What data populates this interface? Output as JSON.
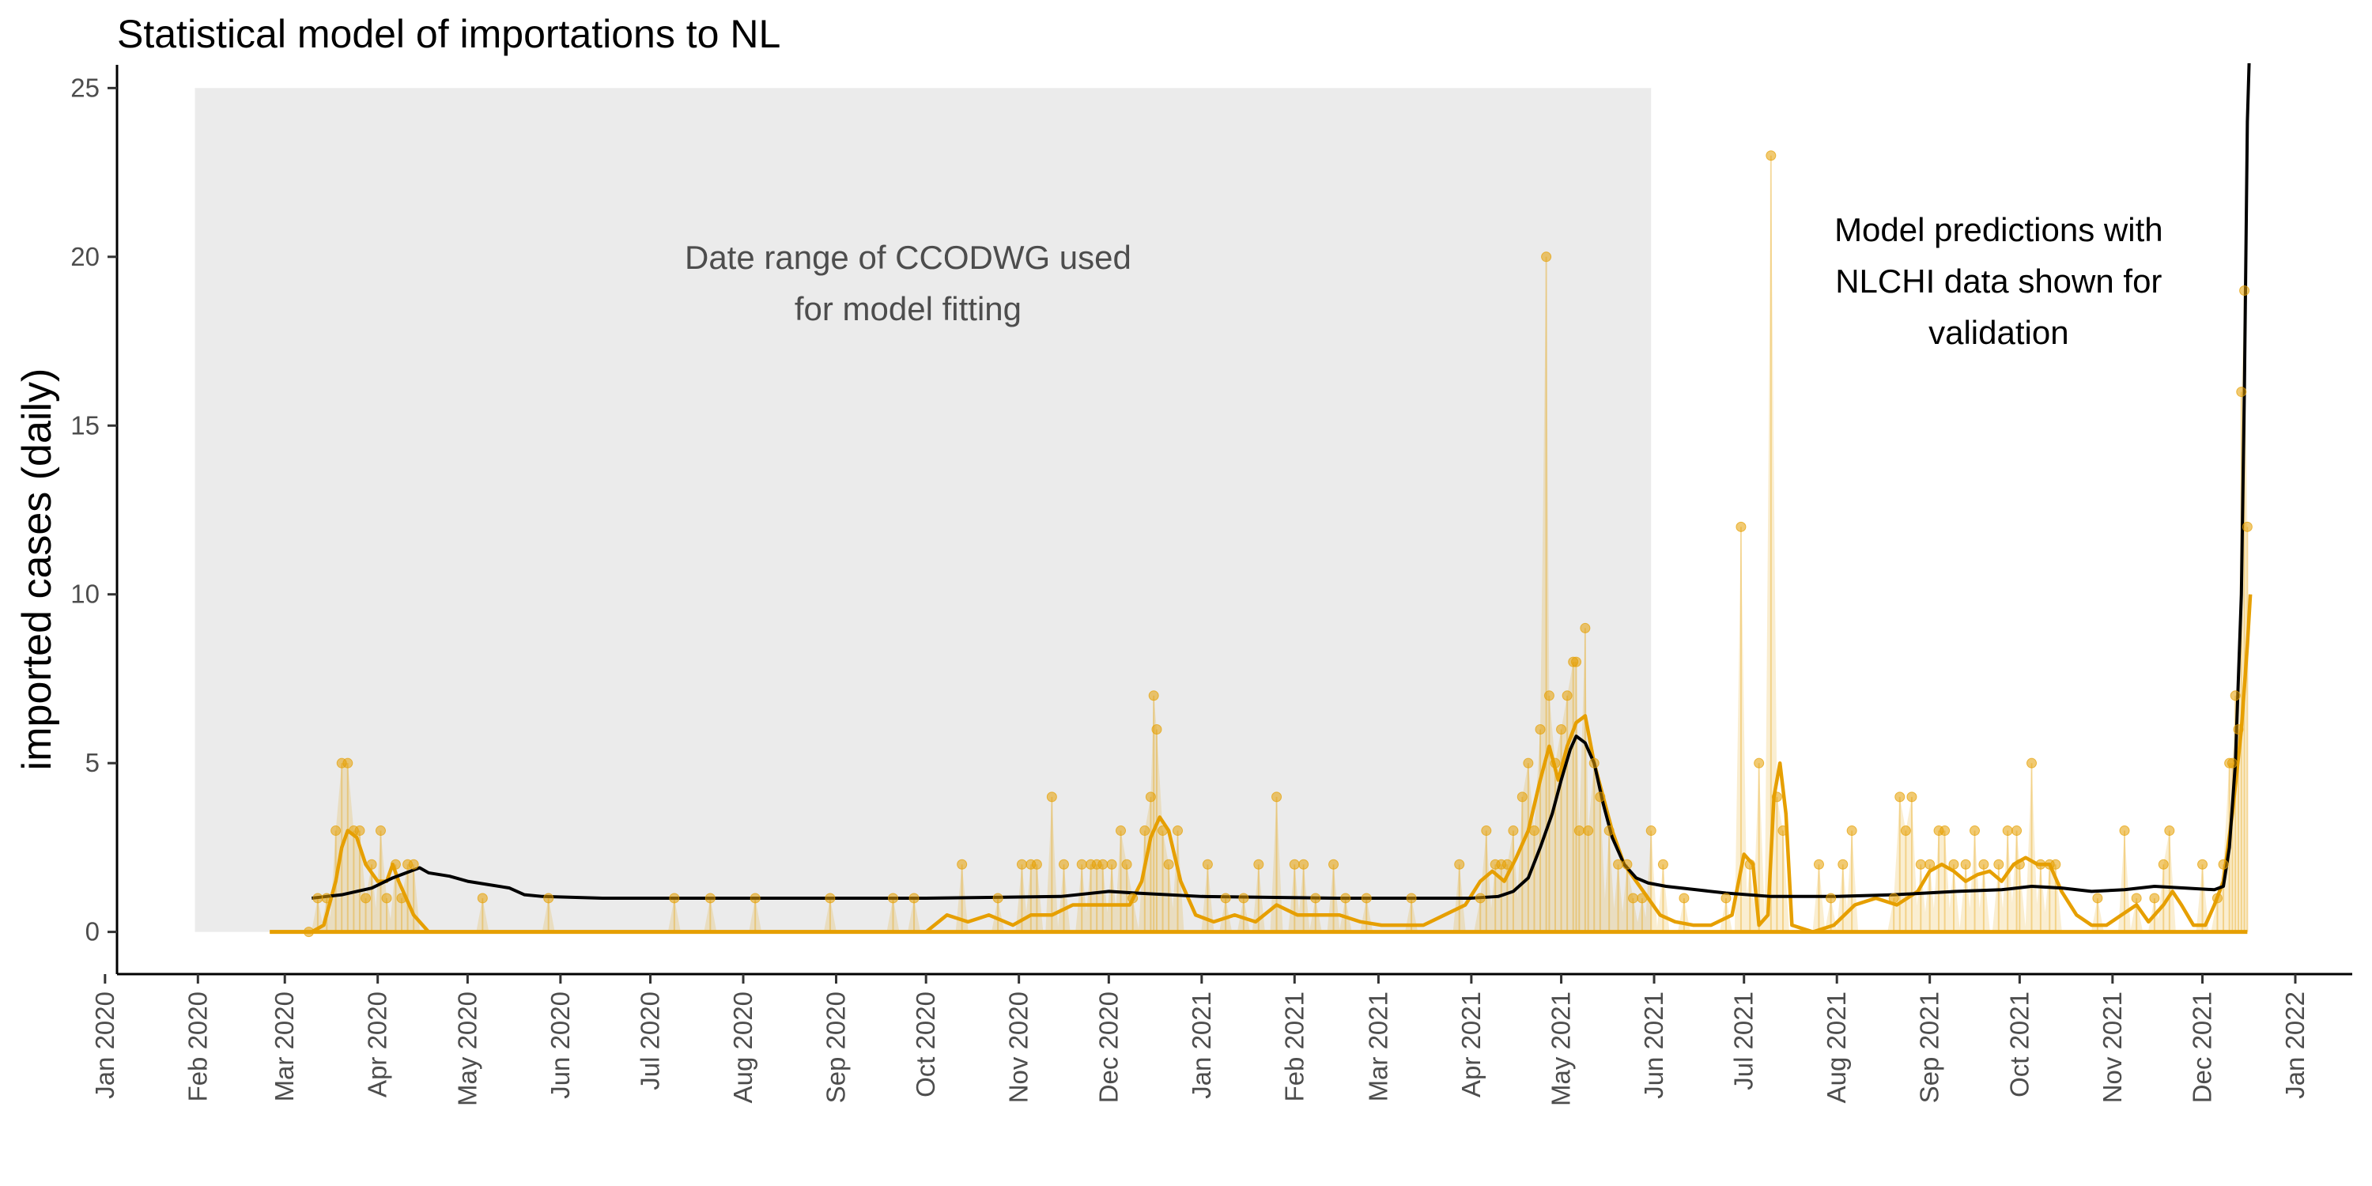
{
  "chart_data": {
    "type": "line",
    "title": "Statistical model of importations to NL",
    "xlabel": "",
    "ylabel": "imported cases (daily)",
    "ylim": [
      -1.25,
      25.5
    ],
    "xlim": [
      "2020-01-05",
      "2022-01-20"
    ],
    "y_ticks": [
      0,
      5,
      10,
      15,
      20,
      25
    ],
    "x_ticks": [
      "2020-01-01",
      "2020-02-01",
      "2020-03-01",
      "2020-04-01",
      "2020-05-01",
      "2020-06-01",
      "2020-07-01",
      "2020-08-01",
      "2020-09-01",
      "2020-10-01",
      "2020-11-01",
      "2020-12-01",
      "2021-01-01",
      "2021-02-01",
      "2021-03-01",
      "2021-04-01",
      "2021-05-01",
      "2021-06-01",
      "2021-07-01",
      "2021-08-01",
      "2021-09-01",
      "2021-10-01",
      "2021-11-01",
      "2021-12-01",
      "2022-01-01"
    ],
    "x_tick_labels": [
      "Jan 2020",
      "Feb 2020",
      "Mar 2020",
      "Apr 2020",
      "May 2020",
      "Jun 2020",
      "Jul 2020",
      "Aug 2020",
      "Sep 2020",
      "Oct 2020",
      "Nov 2020",
      "Dec 2020",
      "Jan 2021",
      "Feb 2021",
      "Mar 2021",
      "Apr 2021",
      "May 2021",
      "Jun 2021",
      "Jul 2021",
      "Aug 2021",
      "Sep 2021",
      "Oct 2021",
      "Nov 2021",
      "Dec 2021",
      "Jan 2022"
    ],
    "grid": false,
    "fitting_period": {
      "start": "2020-01-31",
      "end": "2021-05-31",
      "ymin": 0,
      "ymax": 25,
      "label": "Date range of CCODWG used\nfor model fitting"
    },
    "prediction_label": "Model predictions with\nNLCHI data shown for\nvalidation",
    "observed_points": [
      [
        "2020-03-09",
        0
      ],
      [
        "2020-03-12",
        1
      ],
      [
        "2020-03-15",
        1
      ],
      [
        "2020-03-18",
        3
      ],
      [
        "2020-03-20",
        5
      ],
      [
        "2020-03-22",
        5
      ],
      [
        "2020-03-24",
        3
      ],
      [
        "2020-03-26",
        3
      ],
      [
        "2020-03-28",
        1
      ],
      [
        "2020-03-30",
        2
      ],
      [
        "2020-04-02",
        3
      ],
      [
        "2020-04-04",
        1
      ],
      [
        "2020-04-07",
        2
      ],
      [
        "2020-04-09",
        1
      ],
      [
        "2020-04-11",
        2
      ],
      [
        "2020-04-13",
        2
      ],
      [
        "2020-05-06",
        1
      ],
      [
        "2020-05-28",
        1
      ],
      [
        "2020-07-09",
        1
      ],
      [
        "2020-07-21",
        1
      ],
      [
        "2020-08-05",
        1
      ],
      [
        "2020-08-30",
        1
      ],
      [
        "2020-09-20",
        1
      ],
      [
        "2020-09-27",
        1
      ],
      [
        "2020-10-13",
        2
      ],
      [
        "2020-10-25",
        1
      ],
      [
        "2020-11-02",
        2
      ],
      [
        "2020-11-05",
        2
      ],
      [
        "2020-11-07",
        2
      ],
      [
        "2020-11-12",
        4
      ],
      [
        "2020-11-16",
        2
      ],
      [
        "2020-11-22",
        2
      ],
      [
        "2020-11-25",
        2
      ],
      [
        "2020-11-27",
        2
      ],
      [
        "2020-11-29",
        2
      ],
      [
        "2020-12-02",
        2
      ],
      [
        "2020-12-05",
        3
      ],
      [
        "2020-12-07",
        2
      ],
      [
        "2020-12-09",
        1
      ],
      [
        "2020-12-13",
        3
      ],
      [
        "2020-12-15",
        4
      ],
      [
        "2020-12-16",
        7
      ],
      [
        "2020-12-17",
        6
      ],
      [
        "2020-12-19",
        3
      ],
      [
        "2020-12-21",
        2
      ],
      [
        "2020-12-24",
        3
      ],
      [
        "2021-01-03",
        2
      ],
      [
        "2021-01-09",
        1
      ],
      [
        "2021-01-15",
        1
      ],
      [
        "2021-01-20",
        2
      ],
      [
        "2021-01-26",
        4
      ],
      [
        "2021-02-01",
        2
      ],
      [
        "2021-02-04",
        2
      ],
      [
        "2021-02-08",
        1
      ],
      [
        "2021-02-14",
        2
      ],
      [
        "2021-02-18",
        1
      ],
      [
        "2021-02-25",
        1
      ],
      [
        "2021-03-12",
        1
      ],
      [
        "2021-03-28",
        2
      ],
      [
        "2021-04-04",
        1
      ],
      [
        "2021-04-06",
        3
      ],
      [
        "2021-04-09",
        2
      ],
      [
        "2021-04-11",
        2
      ],
      [
        "2021-04-13",
        2
      ],
      [
        "2021-04-15",
        3
      ],
      [
        "2021-04-18",
        4
      ],
      [
        "2021-04-20",
        5
      ],
      [
        "2021-04-22",
        3
      ],
      [
        "2021-04-24",
        6
      ],
      [
        "2021-04-26",
        20
      ],
      [
        "2021-04-27",
        7
      ],
      [
        "2021-04-29",
        5
      ],
      [
        "2021-05-01",
        6
      ],
      [
        "2021-05-03",
        7
      ],
      [
        "2021-05-05",
        8
      ],
      [
        "2021-05-06",
        8
      ],
      [
        "2021-05-07",
        3
      ],
      [
        "2021-05-09",
        9
      ],
      [
        "2021-05-10",
        3
      ],
      [
        "2021-05-12",
        5
      ],
      [
        "2021-05-14",
        4
      ],
      [
        "2021-05-17",
        3
      ],
      [
        "2021-05-20",
        2
      ],
      [
        "2021-05-23",
        2
      ],
      [
        "2021-05-25",
        1
      ],
      [
        "2021-05-28",
        1
      ],
      [
        "2021-05-31",
        3
      ],
      [
        "2021-06-04",
        2
      ],
      [
        "2021-06-11",
        1
      ],
      [
        "2021-06-25",
        1
      ],
      [
        "2021-06-30",
        12
      ],
      [
        "2021-07-03",
        2
      ],
      [
        "2021-07-06",
        5
      ],
      [
        "2021-07-10",
        23
      ],
      [
        "2021-07-12",
        4
      ],
      [
        "2021-07-14",
        3
      ],
      [
        "2021-07-26",
        2
      ],
      [
        "2021-07-30",
        1
      ],
      [
        "2021-08-03",
        2
      ],
      [
        "2021-08-06",
        3
      ],
      [
        "2021-08-20",
        1
      ],
      [
        "2021-08-22",
        4
      ],
      [
        "2021-08-24",
        3
      ],
      [
        "2021-08-26",
        4
      ],
      [
        "2021-08-29",
        2
      ],
      [
        "2021-09-01",
        2
      ],
      [
        "2021-09-04",
        3
      ],
      [
        "2021-09-06",
        3
      ],
      [
        "2021-09-09",
        2
      ],
      [
        "2021-09-13",
        2
      ],
      [
        "2021-09-16",
        3
      ],
      [
        "2021-09-19",
        2
      ],
      [
        "2021-09-24",
        2
      ],
      [
        "2021-09-27",
        3
      ],
      [
        "2021-09-30",
        3
      ],
      [
        "2021-10-01",
        2
      ],
      [
        "2021-10-05",
        5
      ],
      [
        "2021-10-08",
        2
      ],
      [
        "2021-10-11",
        2
      ],
      [
        "2021-10-13",
        2
      ],
      [
        "2021-10-27",
        1
      ],
      [
        "2021-11-05",
        3
      ],
      [
        "2021-11-09",
        1
      ],
      [
        "2021-11-15",
        1
      ],
      [
        "2021-11-18",
        2
      ],
      [
        "2021-11-20",
        3
      ],
      [
        "2021-12-01",
        2
      ],
      [
        "2021-12-06",
        1
      ],
      [
        "2021-12-08",
        2
      ],
      [
        "2021-12-10",
        5
      ],
      [
        "2021-12-11",
        5
      ],
      [
        "2021-12-12",
        7
      ],
      [
        "2021-12-13",
        6
      ],
      [
        "2021-12-14",
        16
      ],
      [
        "2021-12-15",
        19
      ],
      [
        "2021-12-16",
        12
      ]
    ],
    "series": [
      {
        "color": "#e69f00",
        "points": [
          [
            "2020-02-25",
            0
          ],
          [
            "2020-03-10",
            0
          ],
          [
            "2020-03-14",
            0.2
          ],
          [
            "2020-03-18",
            1.5
          ],
          [
            "2020-03-20",
            2.5
          ],
          [
            "2020-03-22",
            3.0
          ],
          [
            "2020-03-25",
            2.8
          ],
          [
            "2020-03-28",
            2.0
          ],
          [
            "2020-04-01",
            1.5
          ],
          [
            "2020-04-04",
            1.5
          ],
          [
            "2020-04-06",
            2.0
          ],
          [
            "2020-04-08",
            1.5
          ],
          [
            "2020-04-13",
            0.5
          ],
          [
            "2020-04-18",
            0
          ],
          [
            "2020-10-01",
            0
          ],
          [
            "2020-10-08",
            0.5
          ],
          [
            "2020-10-15",
            0.3
          ],
          [
            "2020-10-22",
            0.5
          ],
          [
            "2020-10-30",
            0.2
          ],
          [
            "2020-11-05",
            0.5
          ],
          [
            "2020-11-12",
            0.5
          ],
          [
            "2020-11-19",
            0.8
          ],
          [
            "2020-11-26",
            0.8
          ],
          [
            "2020-12-03",
            0.8
          ],
          [
            "2020-12-08",
            0.8
          ],
          [
            "2020-12-12",
            1.5
          ],
          [
            "2020-12-15",
            2.8
          ],
          [
            "2020-12-18",
            3.4
          ],
          [
            "2020-12-21",
            3.0
          ],
          [
            "2020-12-25",
            1.5
          ],
          [
            "2020-12-30",
            0.5
          ],
          [
            "2021-01-05",
            0.3
          ],
          [
            "2021-01-12",
            0.5
          ],
          [
            "2021-01-19",
            0.3
          ],
          [
            "2021-01-26",
            0.8
          ],
          [
            "2021-02-02",
            0.5
          ],
          [
            "2021-02-09",
            0.5
          ],
          [
            "2021-02-16",
            0.5
          ],
          [
            "2021-02-23",
            0.3
          ],
          [
            "2021-03-02",
            0.2
          ],
          [
            "2021-03-09",
            0.2
          ],
          [
            "2021-03-16",
            0.2
          ],
          [
            "2021-03-23",
            0.5
          ],
          [
            "2021-03-30",
            0.8
          ],
          [
            "2021-04-04",
            1.5
          ],
          [
            "2021-04-08",
            1.8
          ],
          [
            "2021-04-12",
            1.5
          ],
          [
            "2021-04-16",
            2.2
          ],
          [
            "2021-04-20",
            3.0
          ],
          [
            "2021-04-24",
            4.5
          ],
          [
            "2021-04-27",
            5.5
          ],
          [
            "2021-04-30",
            4.5
          ],
          [
            "2021-05-03",
            5.5
          ],
          [
            "2021-05-06",
            6.2
          ],
          [
            "2021-05-09",
            6.4
          ],
          [
            "2021-05-12",
            5.0
          ],
          [
            "2021-05-15",
            4.0
          ],
          [
            "2021-05-18",
            3.0
          ],
          [
            "2021-05-22",
            2.0
          ],
          [
            "2021-05-26",
            1.5
          ],
          [
            "2021-05-30",
            1.0
          ],
          [
            "2021-06-03",
            0.5
          ],
          [
            "2021-06-08",
            0.3
          ],
          [
            "2021-06-14",
            0.2
          ],
          [
            "2021-06-20",
            0.2
          ],
          [
            "2021-06-27",
            0.5
          ],
          [
            "2021-07-01",
            2.3
          ],
          [
            "2021-07-04",
            2.0
          ],
          [
            "2021-07-06",
            0.2
          ],
          [
            "2021-07-09",
            0.5
          ],
          [
            "2021-07-11",
            4.0
          ],
          [
            "2021-07-13",
            5.0
          ],
          [
            "2021-07-15",
            3.5
          ],
          [
            "2021-07-17",
            0.2
          ],
          [
            "2021-07-24",
            0
          ],
          [
            "2021-07-31",
            0.2
          ],
          [
            "2021-08-07",
            0.8
          ],
          [
            "2021-08-14",
            1.0
          ],
          [
            "2021-08-21",
            0.8
          ],
          [
            "2021-08-28",
            1.2
          ],
          [
            "2021-09-01",
            1.8
          ],
          [
            "2021-09-05",
            2.0
          ],
          [
            "2021-09-09",
            1.8
          ],
          [
            "2021-09-13",
            1.5
          ],
          [
            "2021-09-17",
            1.7
          ],
          [
            "2021-09-21",
            1.8
          ],
          [
            "2021-09-25",
            1.5
          ],
          [
            "2021-09-29",
            2.0
          ],
          [
            "2021-10-03",
            2.2
          ],
          [
            "2021-10-07",
            2.0
          ],
          [
            "2021-10-11",
            2.0
          ],
          [
            "2021-10-15",
            1.2
          ],
          [
            "2021-10-20",
            0.5
          ],
          [
            "2021-10-25",
            0.2
          ],
          [
            "2021-10-30",
            0.2
          ],
          [
            "2021-11-04",
            0.5
          ],
          [
            "2021-11-09",
            0.8
          ],
          [
            "2021-11-13",
            0.3
          ],
          [
            "2021-11-18",
            0.8
          ],
          [
            "2021-11-21",
            1.2
          ],
          [
            "2021-11-24",
            0.8
          ],
          [
            "2021-11-28",
            0.2
          ],
          [
            "2021-12-02",
            0.2
          ],
          [
            "2021-12-05",
            0.8
          ],
          [
            "2021-12-08",
            1.5
          ],
          [
            "2021-12-11",
            3.5
          ],
          [
            "2021-12-14",
            6.0
          ],
          [
            "2021-12-16",
            8.5
          ],
          [
            "2021-12-17",
            10.0
          ]
        ]
      },
      {
        "color": "#000000",
        "points": [
          [
            "2020-03-10",
            1.0
          ],
          [
            "2020-03-20",
            1.1
          ],
          [
            "2020-03-30",
            1.3
          ],
          [
            "2020-04-06",
            1.6
          ],
          [
            "2020-04-12",
            1.8
          ],
          [
            "2020-04-15",
            1.9
          ],
          [
            "2020-04-18",
            1.75
          ],
          [
            "2020-04-25",
            1.65
          ],
          [
            "2020-05-01",
            1.5
          ],
          [
            "2020-05-08",
            1.4
          ],
          [
            "2020-05-15",
            1.3
          ],
          [
            "2020-05-20",
            1.1
          ],
          [
            "2020-05-26",
            1.05
          ],
          [
            "2020-06-15",
            1.0
          ],
          [
            "2020-08-01",
            1.0
          ],
          [
            "2020-10-01",
            1.0
          ],
          [
            "2020-11-15",
            1.05
          ],
          [
            "2020-12-01",
            1.2
          ],
          [
            "2020-12-10",
            1.15
          ],
          [
            "2021-01-01",
            1.05
          ],
          [
            "2021-02-15",
            1.0
          ],
          [
            "2021-03-15",
            1.0
          ],
          [
            "2021-04-01",
            1.0
          ],
          [
            "2021-04-10",
            1.05
          ],
          [
            "2021-04-15",
            1.2
          ],
          [
            "2021-04-20",
            1.6
          ],
          [
            "2021-04-24",
            2.5
          ],
          [
            "2021-04-28",
            3.5
          ],
          [
            "2021-05-01",
            4.5
          ],
          [
            "2021-05-04",
            5.4
          ],
          [
            "2021-05-06",
            5.8
          ],
          [
            "2021-05-09",
            5.6
          ],
          [
            "2021-05-12",
            5.0
          ],
          [
            "2021-05-15",
            3.8
          ],
          [
            "2021-05-18",
            2.8
          ],
          [
            "2021-05-22",
            2.0
          ],
          [
            "2021-05-26",
            1.6
          ],
          [
            "2021-05-30",
            1.45
          ],
          [
            "2021-06-05",
            1.35
          ],
          [
            "2021-06-15",
            1.25
          ],
          [
            "2021-06-25",
            1.15
          ],
          [
            "2021-07-10",
            1.05
          ],
          [
            "2021-08-01",
            1.05
          ],
          [
            "2021-08-20",
            1.1
          ],
          [
            "2021-09-10",
            1.2
          ],
          [
            "2021-09-25",
            1.25
          ],
          [
            "2021-10-05",
            1.35
          ],
          [
            "2021-10-15",
            1.3
          ],
          [
            "2021-10-25",
            1.2
          ],
          [
            "2021-11-05",
            1.25
          ],
          [
            "2021-11-15",
            1.35
          ],
          [
            "2021-11-25",
            1.3
          ],
          [
            "2021-12-05",
            1.25
          ],
          [
            "2021-12-08",
            1.35
          ],
          [
            "2021-12-10",
            2.5
          ],
          [
            "2021-12-12",
            5.0
          ],
          [
            "2021-12-14",
            10.0
          ],
          [
            "2021-12-15",
            16.0
          ],
          [
            "2021-12-16",
            24.0
          ],
          [
            "2021-12-17",
            27.0
          ]
        ]
      }
    ]
  }
}
